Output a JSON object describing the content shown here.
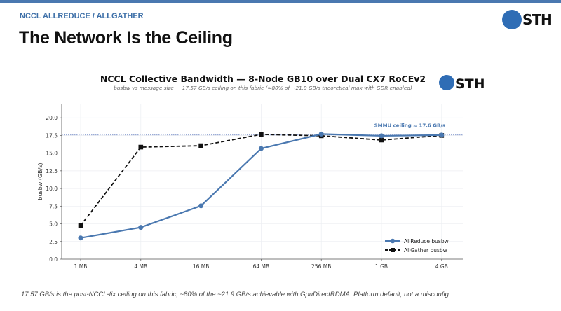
{
  "header": {
    "kicker": "NCCL ALLREDUCE / ALLGATHER",
    "title": "The Network Is the Ceiling",
    "logo_text": "STH"
  },
  "footer": {
    "note": "17.57 GB/s is the post-NCCL-fix ceiling on this fabric, ~80% of the ~21.9 GB/s achievable with GpuDirectRDMA. Platform default; not a misconfig."
  },
  "chart_data": {
    "type": "line",
    "title": "NCCL Collective Bandwidth — 8-Node GB10 over Dual CX7 RoCEv2",
    "subtitle": "busbw vs message size — 17.57 GB/s ceiling on this fabric (≈80% of ~21.9 GB/s theoretical max with GDR enabled)",
    "logo_text": "STH",
    "xlabel": "",
    "ylabel": "busbw (GB/s)",
    "categories": [
      "1 MB",
      "4 MB",
      "16 MB",
      "64 MB",
      "256 MB",
      "1 GB",
      "4 GB"
    ],
    "ylim": [
      0,
      22
    ],
    "yticks": [
      "0.0",
      "2.5",
      "5.0",
      "7.5",
      "10.0",
      "12.5",
      "15.0",
      "17.5",
      "20.0"
    ],
    "grid": true,
    "legend": "bottom-right",
    "series": [
      {
        "name": "AllReduce busbw",
        "values": [
          3.0,
          4.5,
          7.55,
          15.65,
          17.7,
          17.45,
          17.55
        ],
        "color": "#4a78b0",
        "style": "solid",
        "marker": "circle"
      },
      {
        "name": "AllGather busbw",
        "values": [
          4.75,
          15.85,
          16.05,
          17.65,
          17.45,
          16.85,
          17.5
        ],
        "color": "#111111",
        "style": "dashed",
        "marker": "square"
      }
    ],
    "reference_line": {
      "value": 17.57,
      "label": "SMMU ceiling ≈ 17.6 GB/s",
      "color": "#7a90c8"
    }
  }
}
